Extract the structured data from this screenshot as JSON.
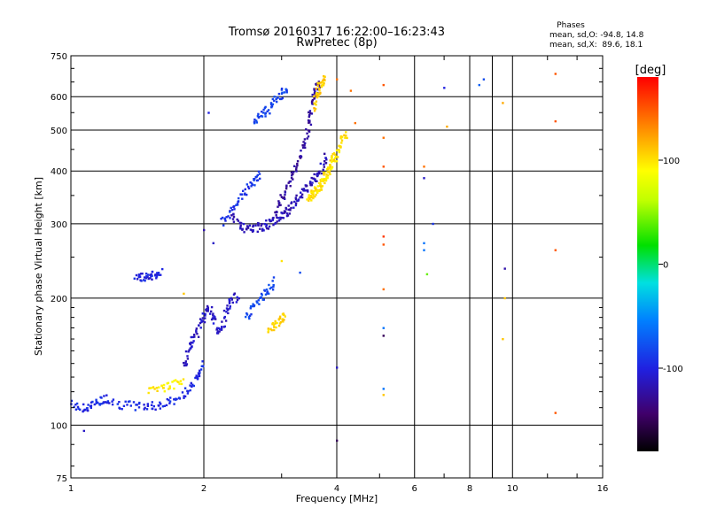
{
  "chart_data": {
    "type": "scatter",
    "title": "Tromsø 20160317 16:22:00–16:23:43",
    "subtitle": "RwPretec (8p)",
    "xlabel": "Frequency [MHz]",
    "ylabel": "Stationary phase Virtual Height [km]",
    "xscale": "log",
    "yscale": "log",
    "xlim": [
      1,
      16
    ],
    "ylim": [
      75,
      750
    ],
    "xticks": [
      1,
      2,
      4,
      6,
      8,
      10,
      16
    ],
    "yticks": [
      75,
      100,
      200,
      300,
      400,
      500,
      600,
      750
    ],
    "grid": true,
    "phase_box": {
      "title": "Phases",
      "line1": "mean, sd,O: -94.8, 14.8",
      "line2": "mean, sd,X:  89.6, 18.1"
    },
    "colorbar": {
      "label": "[deg]",
      "range": [
        -180,
        180
      ],
      "ticks": [
        100,
        0,
        -100
      ],
      "colormap": "rainbow: black(-180) → purple → blue → cyan → green → yellow → orange → red(180)"
    },
    "series": [
      {
        "value_unit": "phase deg",
        "traces": [
          {
            "f": [
              1.0,
              1.06,
              1.1,
              1.16,
              1.2,
              1.3,
              1.4,
              1.5,
              1.6,
              1.7,
              1.8,
              1.9,
              1.95,
              2.0
            ],
            "h": [
              113,
              109,
              111,
              114,
              116,
              112,
              111,
              111,
              112,
              114,
              118,
              126,
              132,
              142
            ],
            "phase": -95
          },
          {
            "f": [
              1.8,
              1.85,
              1.9,
              1.95,
              2.0,
              2.05,
              2.1,
              2.15,
              2.2,
              2.25,
              2.3,
              2.4
            ],
            "h": [
              138,
              150,
              160,
              172,
              182,
              192,
              178,
              166,
              172,
              188,
              196,
              205
            ],
            "phase": -110
          },
          {
            "f": [
              2.3,
              2.4,
              2.5,
              2.6,
              2.7,
              2.8,
              2.9,
              3.0,
              3.1,
              3.2,
              3.3,
              3.4,
              3.5,
              3.6,
              3.7,
              3.8
            ],
            "h": [
              320,
              300,
              290,
              292,
              296,
              300,
              306,
              312,
              322,
              334,
              348,
              362,
              372,
              390,
              410,
              440
            ],
            "phase": -115
          },
          {
            "f": [
              2.9,
              3.0,
              3.1,
              3.2,
              3.3,
              3.4,
              3.45,
              3.5,
              3.55,
              3.6,
              3.65
            ],
            "h": [
              320,
              340,
              370,
              400,
              430,
              470,
              520,
              560,
              600,
              630,
              650
            ],
            "phase": -125
          },
          {
            "f": [
              3.45,
              3.5,
              3.55,
              3.6,
              3.65,
              3.7,
              3.75,
              3.8,
              3.85,
              3.9,
              3.95,
              4.0,
              4.1,
              4.2
            ],
            "h": [
              345,
              350,
              355,
              360,
              368,
              375,
              385,
              395,
              405,
              420,
              430,
              445,
              470,
              490
            ],
            "phase": 100
          },
          {
            "f": [
              3.55,
              3.6,
              3.65,
              3.7,
              3.75
            ],
            "h": [
              560,
              600,
              630,
              650,
              660
            ],
            "phase": 110
          },
          {
            "f": [
              2.6,
              2.7,
              2.8,
              2.9,
              3.0,
              3.1
            ],
            "h": [
              520,
              540,
              560,
              590,
              610,
              620
            ],
            "phase": -85
          },
          {
            "f": [
              2.2,
              2.3,
              2.4,
              2.5,
              2.6,
              2.7
            ],
            "h": [
              300,
              320,
              340,
              360,
              380,
              395
            ],
            "phase": -90
          },
          {
            "f": [
              1.4,
              1.45,
              1.5,
              1.55,
              1.6
            ],
            "h": [
              222,
              224,
              226,
              228,
              230
            ],
            "phase": -100
          },
          {
            "f": [
              2.5,
              2.6,
              2.7,
              2.8,
              2.9
            ],
            "h": [
              180,
              190,
              200,
              210,
              220
            ],
            "phase": -80
          },
          {
            "f": [
              2.8,
              2.9,
              3.0,
              3.05
            ],
            "h": [
              170,
              172,
              178,
              182
            ],
            "phase": 105
          },
          {
            "f": [
              1.5,
              1.6,
              1.7,
              1.8
            ],
            "h": [
              120,
              122,
              125,
              128
            ],
            "phase": 95
          }
        ]
      }
    ],
    "scattered_points": [
      {
        "f": 1.07,
        "h": 97,
        "phase": -110
      },
      {
        "f": 2.05,
        "h": 550,
        "phase": -100
      },
      {
        "f": 4.0,
        "h": 137,
        "phase": -110
      },
      {
        "f": 4.0,
        "h": 92,
        "phase": -150
      },
      {
        "f": 4.0,
        "h": 660,
        "phase": 140
      },
      {
        "f": 4.3,
        "h": 620,
        "phase": 140
      },
      {
        "f": 4.4,
        "h": 520,
        "phase": 140
      },
      {
        "f": 5.1,
        "h": 640,
        "phase": 150
      },
      {
        "f": 5.1,
        "h": 480,
        "phase": 140
      },
      {
        "f": 5.1,
        "h": 410,
        "phase": 150
      },
      {
        "f": 5.1,
        "h": 280,
        "phase": 160
      },
      {
        "f": 5.1,
        "h": 268,
        "phase": 150
      },
      {
        "f": 5.1,
        "h": 210,
        "phase": 140
      },
      {
        "f": 5.1,
        "h": 170,
        "phase": -60
      },
      {
        "f": 5.1,
        "h": 163,
        "phase": -150
      },
      {
        "f": 5.1,
        "h": 122,
        "phase": -60
      },
      {
        "f": 5.1,
        "h": 118,
        "phase": 110
      },
      {
        "f": 6.3,
        "h": 410,
        "phase": 140
      },
      {
        "f": 6.3,
        "h": 385,
        "phase": -110
      },
      {
        "f": 6.3,
        "h": 270,
        "phase": -60
      },
      {
        "f": 6.3,
        "h": 260,
        "phase": -60
      },
      {
        "f": 6.6,
        "h": 300,
        "phase": -90
      },
      {
        "f": 6.4,
        "h": 228,
        "phase": 40
      },
      {
        "f": 7.0,
        "h": 630,
        "phase": -100
      },
      {
        "f": 7.1,
        "h": 510,
        "phase": 120
      },
      {
        "f": 8.4,
        "h": 640,
        "phase": -70
      },
      {
        "f": 8.6,
        "h": 660,
        "phase": -80
      },
      {
        "f": 9.5,
        "h": 580,
        "phase": 120
      },
      {
        "f": 9.6,
        "h": 235,
        "phase": -120
      },
      {
        "f": 9.6,
        "h": 200,
        "phase": 110
      },
      {
        "f": 9.5,
        "h": 160,
        "phase": 110
      },
      {
        "f": 12.5,
        "h": 680,
        "phase": 150
      },
      {
        "f": 12.5,
        "h": 525,
        "phase": 150
      },
      {
        "f": 12.5,
        "h": 260,
        "phase": 150
      },
      {
        "f": 12.5,
        "h": 107,
        "phase": 150
      },
      {
        "f": 2.0,
        "h": 290,
        "phase": -120
      },
      {
        "f": 2.1,
        "h": 270,
        "phase": -110
      },
      {
        "f": 1.8,
        "h": 205,
        "phase": 110
      },
      {
        "f": 3.0,
        "h": 245,
        "phase": 100
      },
      {
        "f": 3.3,
        "h": 230,
        "phase": -80
      }
    ]
  }
}
